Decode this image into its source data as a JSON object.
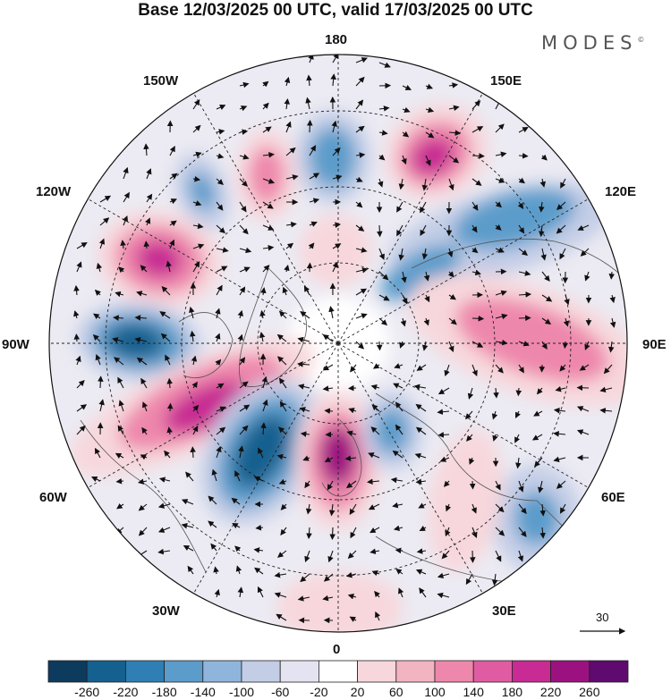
{
  "title": "Base 12/03/2025 00 UTC, valid 17/03/2025 00 UTC",
  "brand": {
    "name": "MODES",
    "mark": "©"
  },
  "longitude_labels": {
    "lon_180": "180",
    "lon_150e": "150E",
    "lon_120e": "120E",
    "lon_90e": "90E",
    "lon_60e": "60E",
    "lon_30e": "30E",
    "lon_0": "0",
    "lon_30w": "30W",
    "lon_60w": "60W",
    "lon_90w": "90W",
    "lon_120w": "120W",
    "lon_150w": "150W"
  },
  "vector_reference": {
    "value": "30"
  },
  "colorbar": {
    "labels": [
      "-260",
      "-220",
      "-180",
      "-140",
      "-100",
      "-60",
      "-20",
      "20",
      "60",
      "100",
      "140",
      "180",
      "220",
      "260"
    ],
    "colors": [
      "#0d3b5e",
      "#14608f",
      "#2f7fb5",
      "#5b9ccb",
      "#8fb5dc",
      "#c3cde6",
      "#e4e3f1",
      "#ffffff",
      "#f7d7db",
      "#f3b4c1",
      "#ee87ac",
      "#e05ca2",
      "#c82b93",
      "#9c1180",
      "#5e0a6f"
    ]
  },
  "anomaly_colors": {
    "negative_strong": "#14608f",
    "negative_mid": "#5b9ccb",
    "negative_weak": "#c3cde6",
    "positive_weak": "#f7d7db",
    "positive_mid": "#ee87ac",
    "positive_strong": "#c82b93",
    "positive_extreme": "#9c1180"
  }
}
